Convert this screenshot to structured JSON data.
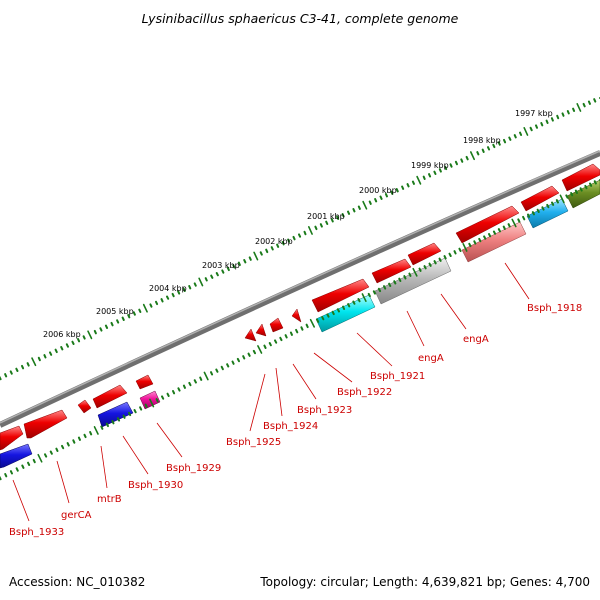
{
  "title": "Lysinibacillus sphaericus C3-41, complete genome",
  "footer": {
    "accession": "Accession: NC_010382",
    "topology": "Topology: circular; Length: 4,639,821 bp; Genes: 4,700"
  },
  "colors": {
    "forward_cds": "#ee0000",
    "reverse_cds": "#1515e0",
    "rna_cyan": "#00e5ee",
    "grey_feature": "#b8b8b8",
    "pink_feature": "#ee8080",
    "magenta_feature": "#ee1199",
    "olive_feature": "#6b8e23",
    "label_red": "#cc0000",
    "backbone": "#777777",
    "tick_green": "#1a7a1a"
  },
  "kbp_labels": [
    "2006 kbp",
    "2005 kbp",
    "2004 kbp",
    "2003 kbp",
    "2002 kbp",
    "2001 kbp",
    "2000 kbp",
    "1999 kbp",
    "1998 kbp",
    "1997 kbp"
  ],
  "gene_labels": [
    "Bsph_1933",
    "gerCA",
    "mtrB",
    "Bsph_1930",
    "Bsph_1929",
    "Bsph_1925",
    "Bsph_1924",
    "Bsph_1923",
    "Bsph_1922",
    "Bsph_1921",
    "engA",
    "engA",
    "Bsph_1918"
  ]
}
